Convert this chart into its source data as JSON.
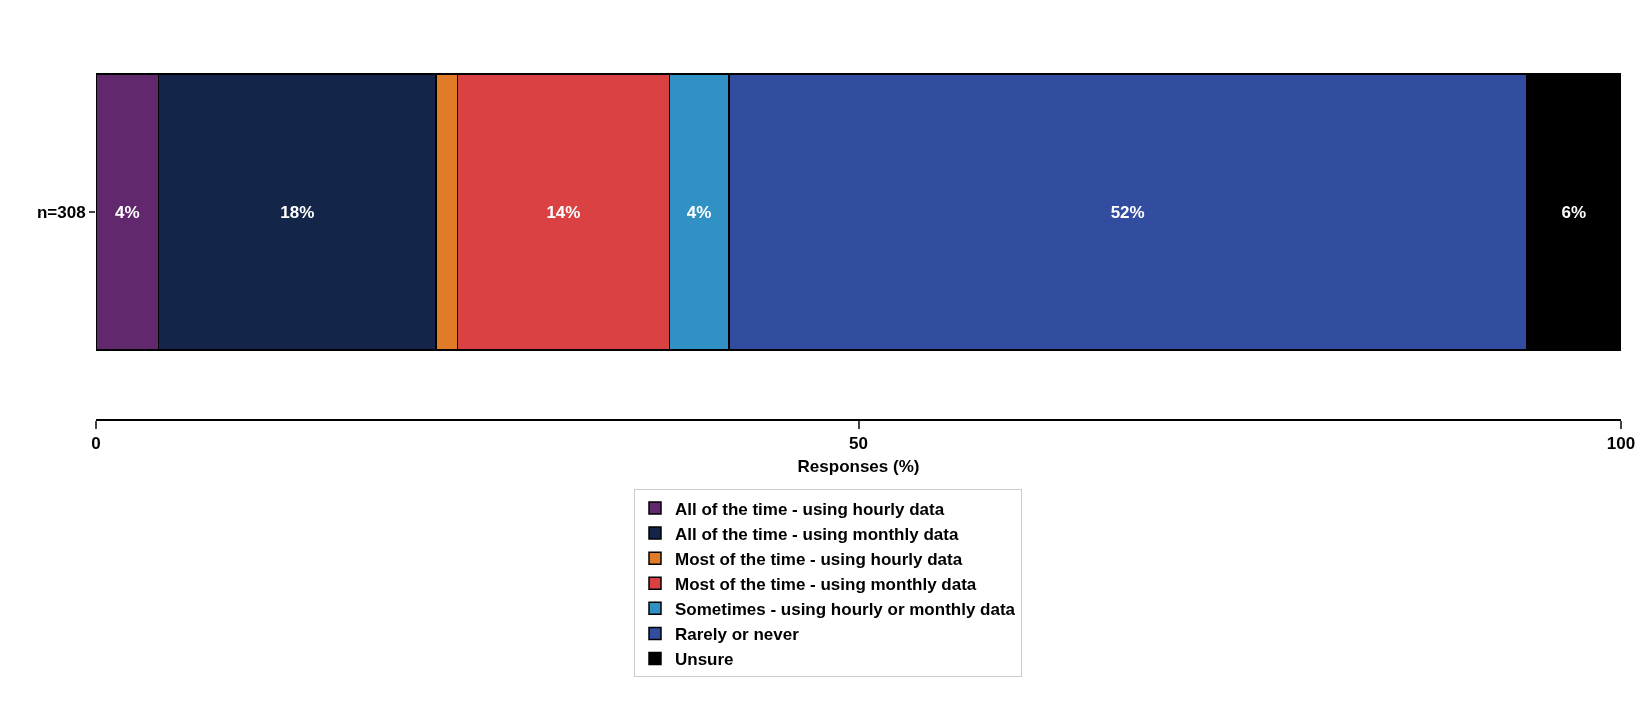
{
  "chart_data": {
    "type": "bar",
    "orientation": "horizontal",
    "stacked": true,
    "categories": [
      "n=308"
    ],
    "xlabel": "Responses (%)",
    "xlim": [
      0,
      100
    ],
    "xticks": [
      0,
      50,
      100
    ],
    "grid": false,
    "legend": "bottom",
    "series": [
      {
        "name": "All of the time - using hourly data",
        "color": "#62286e",
        "values": [
          4.1
        ],
        "value_labels": [
          "4%"
        ]
      },
      {
        "name": "All of the time - using monthly data",
        "color": "#132548",
        "values": [
          18.2
        ],
        "value_labels": [
          "18%"
        ]
      },
      {
        "name": "Most of the time - using hourly data",
        "color": "#e07b28",
        "values": [
          1.4
        ],
        "value_labels": [
          null
        ]
      },
      {
        "name": "Most of the time - using monthly data",
        "color": "#d94142",
        "values": [
          13.9
        ],
        "value_labels": [
          "14%"
        ]
      },
      {
        "name": "Sometimes - using hourly or monthly data",
        "color": "#3190c4",
        "values": [
          3.9
        ],
        "value_labels": [
          "4%"
        ]
      },
      {
        "name": "Rarely or never",
        "color": "#324ca0",
        "values": [
          52.3
        ],
        "value_labels": [
          "52%"
        ]
      },
      {
        "name": "Unsure",
        "color": "#000000",
        "values": [
          6.2
        ],
        "value_labels": [
          "6%"
        ]
      }
    ]
  }
}
